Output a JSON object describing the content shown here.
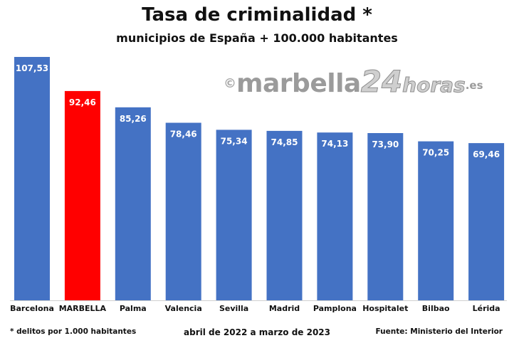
{
  "chart_data": {
    "type": "bar",
    "title": "Tasa de criminalidad *",
    "subtitle": "municipios de España + 100.000 habitantes",
    "categories": [
      "Barcelona",
      "MARBELLA",
      "Palma",
      "Valencia",
      "Sevilla",
      "Madrid",
      "Pamplona",
      "Hospitalet",
      "Bilbao",
      "Lérida"
    ],
    "values": [
      107.53,
      92.46,
      85.26,
      78.46,
      75.34,
      74.85,
      74.13,
      73.9,
      70.25,
      69.46
    ],
    "value_labels": [
      "107,53",
      "92,46",
      "85,26",
      "78,46",
      "75,34",
      "74,85",
      "74,13",
      "73,90",
      "70,25",
      "69,46"
    ],
    "highlight_index": 1,
    "colors": {
      "bar": "#4472c4",
      "highlight": "#ff0000",
      "label": "#ffffff"
    },
    "grid": false,
    "legend": "none",
    "ylim": [
      0,
      107.53
    ]
  },
  "watermark": {
    "copyright": "©",
    "name": "marbella",
    "number": "24",
    "rest": "horas",
    "domain": ".es"
  },
  "footer": {
    "note": "* delitos por 1.000 habitantes",
    "period": "abril de 2022 a marzo de 2023",
    "source": "Fuente: Ministerio del Interior"
  }
}
